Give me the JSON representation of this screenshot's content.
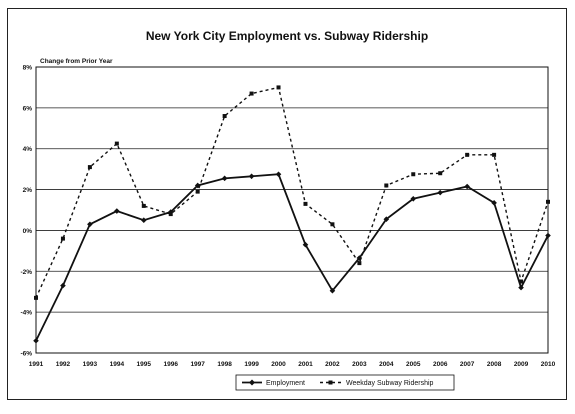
{
  "chart_data": {
    "type": "line",
    "title": "New York City Employment vs. Subway Ridership",
    "ylabel": "Change from Prior Year",
    "xlabel": "",
    "categories": [
      "1991",
      "1992",
      "1993",
      "1994",
      "1995",
      "1996",
      "1997",
      "1998",
      "1999",
      "2000",
      "2001",
      "2002",
      "2003",
      "2004",
      "2005",
      "2006",
      "2007",
      "2008",
      "2009",
      "2010"
    ],
    "y_ticks": [
      "8%",
      "6%",
      "4%",
      "2%",
      "0%",
      "-2%",
      "-4%",
      "-6%"
    ],
    "ylim": [
      -6,
      8
    ],
    "grid": true,
    "legend_position": "bottom",
    "series": [
      {
        "name": "Employment",
        "style": "solid",
        "marker": "diamond",
        "color": "#111111",
        "values": [
          -5.4,
          -2.7,
          0.3,
          0.95,
          0.5,
          0.9,
          2.2,
          2.55,
          2.65,
          2.75,
          -0.7,
          -2.95,
          -1.35,
          0.55,
          1.55,
          1.85,
          2.15,
          1.35,
          -2.8,
          -0.25
        ]
      },
      {
        "name": "Weekday Subway Ridership",
        "style": "dashed",
        "marker": "square",
        "color": "#111111",
        "values": [
          -3.3,
          -0.4,
          3.1,
          4.25,
          1.2,
          0.8,
          1.9,
          5.6,
          6.7,
          7.0,
          1.3,
          0.3,
          -1.6,
          2.2,
          2.75,
          2.8,
          3.7,
          3.7,
          -2.5,
          1.4
        ]
      }
    ]
  }
}
